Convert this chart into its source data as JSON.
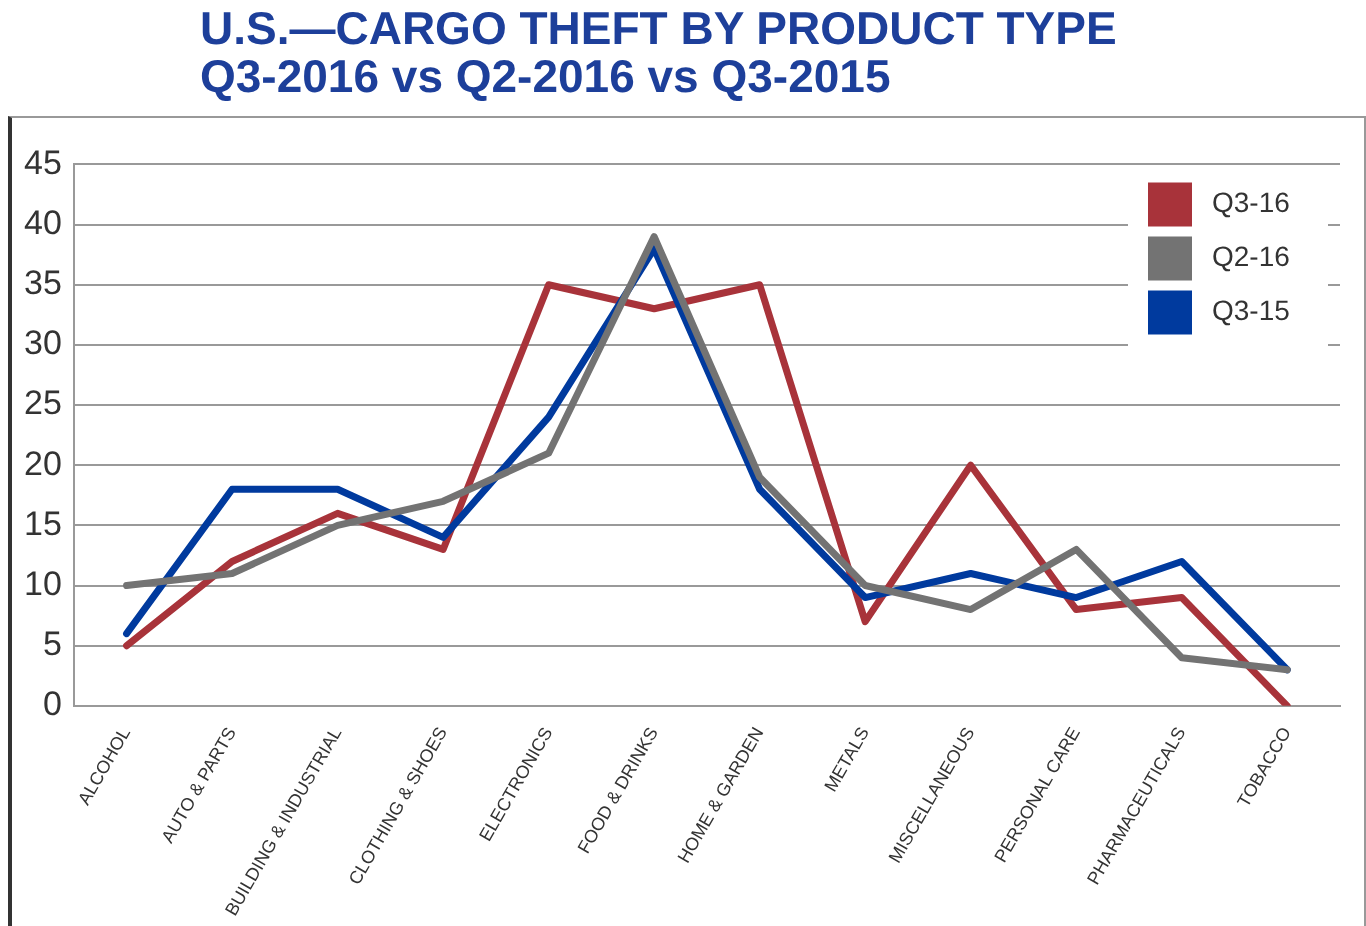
{
  "chart_data": {
    "type": "line",
    "title": "U.S.—CARGO THEFT BY PRODUCT TYPE",
    "subtitle": "Q3-2016 vs Q2-2016 vs Q3-2015",
    "categories": [
      "ALCOHOL",
      "AUTO & PARTS",
      "BUILDING & INDUSTRIAL",
      "CLOTHING & SHOES",
      "ELECTRONICS",
      "FOOD & DRINKS",
      "HOME & GARDEN",
      "METALS",
      "MISCELLANEOUS",
      "PERSONAL CARE",
      "PHARMACEUTICALS",
      "TOBACCO"
    ],
    "series": [
      {
        "name": "Q2-16",
        "color": "#737373",
        "values": [
          10,
          11,
          15,
          17,
          21,
          39,
          19,
          10,
          8,
          13,
          4,
          3
        ]
      },
      {
        "name": "Q3-15",
        "color": "#003a9e",
        "values": [
          6,
          18,
          18,
          14,
          24,
          38,
          18,
          9,
          11,
          9,
          12,
          3
        ]
      },
      {
        "name": "Q3-16",
        "color": "#a8333a",
        "values": [
          5,
          12,
          16,
          13,
          35,
          33,
          35,
          7,
          20,
          8,
          9,
          0
        ]
      }
    ],
    "ylim": [
      0,
      45
    ],
    "yticks": [
      0,
      5,
      10,
      15,
      20,
      25,
      30,
      35,
      40,
      45
    ],
    "grid": "y",
    "legend": "top right",
    "marker": "none",
    "line_style": "solid"
  }
}
